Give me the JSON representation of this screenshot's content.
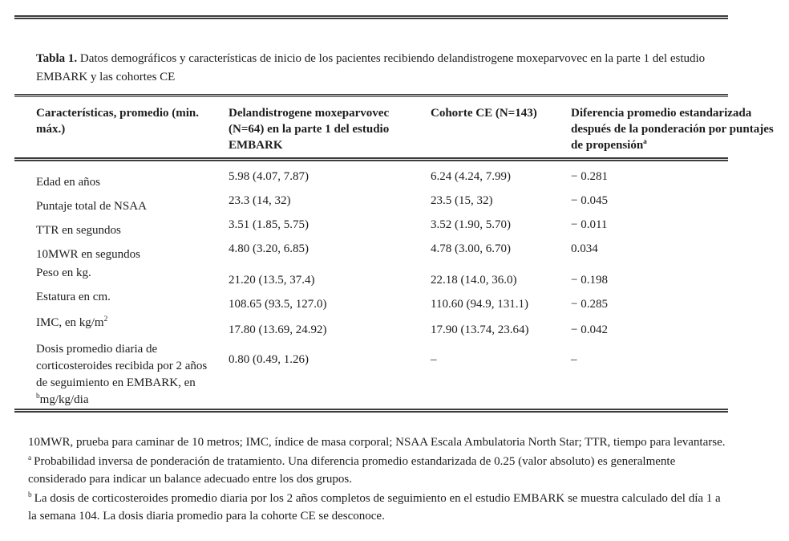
{
  "caption": {
    "label": "Tabla 1.",
    "text": " Datos demográficos y características de inicio de los pacientes recibiendo delandistrogene moxeparvovec en la parte 1 del estudio EMBARK y las cohortes CE"
  },
  "table": {
    "header": {
      "characteristics": "Características, promedio (min. máx.)",
      "embark": "Delandistrogene moxeparvovec (N=64) en la parte 1 del estudio EMBARK",
      "ce": "Cohorte CE (N=143)",
      "difference": "Diferencia promedio estandarizada después de la ponderación por puntajes de propensión",
      "difference_sup": "a"
    },
    "rows": [
      {
        "label": "Edad en años",
        "embark": "5.98 (4.07, 7.87)",
        "ce": "6.24 (4.24, 7.99)",
        "diff": "− 0.281"
      },
      {
        "label": "Puntaje total de NSAA",
        "embark": "23.3 (14, 32)",
        "ce": "23.5 (15, 32)",
        "diff": "− 0.045"
      },
      {
        "label": "TTR en segundos",
        "embark": "3.51 (1.85, 5.75)",
        "ce": "3.52 (1.90, 5.70)",
        "diff": "− 0.011"
      },
      {
        "label": "10MWR en segundos",
        "embark": "4.80 (3.20, 6.85)",
        "ce": "4.78 (3.00, 6.70)",
        "diff": "0.034"
      },
      {
        "label": "Peso en kg.",
        "embark": "21.20 (13.5, 37.4)",
        "ce": "22.18 (14.0, 36.0)",
        "diff": "− 0.198"
      },
      {
        "label": "Estatura en cm.",
        "embark": "108.65 (93.5, 127.0)",
        "ce": "110.60 (94.9, 131.1)",
        "diff": "− 0.285"
      },
      {
        "label": "IMC, en kg/m",
        "label_sup": "2",
        "embark": "17.80 (13.69, 24.92)",
        "ce": "17.90 (13.74, 23.64)",
        "diff": "− 0.042"
      },
      {
        "label": "Dosis promedio diaria de corticosteroides recibida por 2 años de seguimiento en EMBARK, en ",
        "label_sup": "b",
        "label_after": "mg/kg/dia",
        "embark": "0.80 (0.49, 1.26)",
        "ce": "–",
        "diff": "–"
      }
    ]
  },
  "footnotes": {
    "abbreviations": "10MWR, prueba para caminar de 10 metros; IMC, índice de masa corporal; NSAA Escala Ambulatoria North Star; TTR, tiempo para levantarse.",
    "a_marker": "a",
    "a_text": "Probabilidad inversa de ponderación de tratamiento. Una diferencia promedio estandarizada de 0.25 (valor absoluto) es generalmente considerado para indicar un balance adecuado entre los dos grupos.",
    "b_marker": "b",
    "b_text": "La dosis de corticosteroides promedio diaria por los 2 años completos de seguimiento en el estudio EMBARK se muestra calculado del día 1 a la semana 104. La dosis diaria promedio para la cohorte CE se desconoce."
  },
  "colors": {
    "text": "#1c1c1c",
    "rule": "#3d3d3d",
    "background": "#ffffff"
  }
}
